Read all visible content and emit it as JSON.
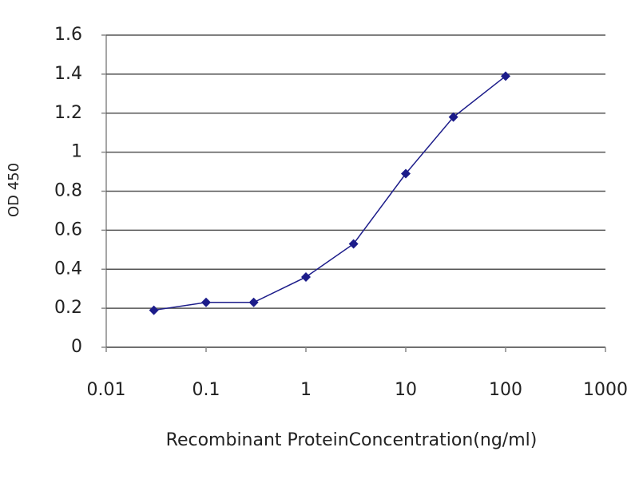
{
  "chart_data": {
    "type": "line",
    "x": [
      0.03,
      0.1,
      0.3,
      1,
      3,
      10,
      30,
      100
    ],
    "series": [
      {
        "color": "#1c1c8a",
        "values": [
          0.19,
          0.23,
          0.23,
          0.36,
          0.53,
          0.89,
          1.18,
          1.39
        ]
      }
    ],
    "xlabel": "Recombinant ProteinConcentration(ng/ml)",
    "ylabel": "OD 450",
    "xscale": "log",
    "xlim": [
      0.01,
      1000
    ],
    "xticks": [
      0.01,
      0.1,
      1,
      10,
      100,
      1000
    ],
    "ylim": [
      0,
      1.6
    ],
    "yticks": [
      0,
      0.2,
      0.4,
      0.6,
      0.8,
      1,
      1.2,
      1.4,
      1.6
    ],
    "grid": true
  }
}
